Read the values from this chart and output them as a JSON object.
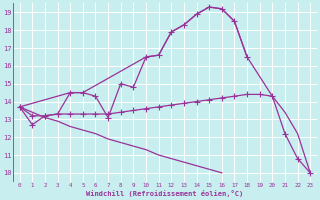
{
  "background_color": "#c8eef0",
  "grid_color": "#b8dde0",
  "line_color": "#993399",
  "xlabel": "Windchill (Refroidissement éolien,°C)",
  "xlim": [
    -0.5,
    23.5
  ],
  "ylim": [
    9.5,
    19.5
  ],
  "yticks": [
    10,
    11,
    12,
    13,
    14,
    15,
    16,
    17,
    18,
    19
  ],
  "xticks": [
    0,
    1,
    2,
    3,
    4,
    5,
    6,
    7,
    8,
    9,
    10,
    11,
    12,
    13,
    14,
    15,
    16,
    17,
    18,
    19,
    20,
    21,
    22,
    23
  ],
  "line1": {
    "x": [
      0,
      1,
      2,
      3,
      4,
      5,
      6,
      7,
      8,
      9,
      10,
      11,
      12,
      13,
      14,
      15,
      16,
      17,
      18
    ],
    "y": [
      13.7,
      12.7,
      13.2,
      13.3,
      14.5,
      14.5,
      14.3,
      13.1,
      15.0,
      14.8,
      16.5,
      16.6,
      17.9,
      18.3,
      18.9,
      19.3,
      19.2,
      18.5,
      16.5
    ]
  },
  "line2": {
    "x": [
      0,
      4,
      5,
      10,
      11,
      12,
      13,
      14,
      15,
      16,
      17,
      18,
      20,
      21,
      22,
      23
    ],
    "y": [
      13.7,
      14.5,
      14.5,
      16.5,
      16.6,
      17.9,
      18.3,
      18.9,
      19.3,
      19.2,
      18.5,
      16.5,
      14.3,
      13.4,
      12.2,
      10.0
    ]
  },
  "line3": {
    "x": [
      0,
      1,
      2,
      3,
      4,
      5,
      6,
      7,
      8,
      9,
      10,
      11,
      12,
      13,
      14,
      15,
      16,
      17,
      18,
      19,
      20,
      21,
      22,
      23
    ],
    "y": [
      13.7,
      13.2,
      13.2,
      13.3,
      13.3,
      13.3,
      13.3,
      13.3,
      13.4,
      13.5,
      13.6,
      13.7,
      13.8,
      13.9,
      14.0,
      14.1,
      14.2,
      14.3,
      14.4,
      14.4,
      14.3,
      12.2,
      10.8,
      10.0
    ]
  },
  "line4": {
    "x": [
      0,
      1,
      2,
      3,
      4,
      5,
      6,
      7,
      8,
      9,
      10,
      11,
      12,
      13,
      14,
      15,
      16,
      17,
      18,
      19,
      20,
      21,
      22,
      23
    ],
    "y": [
      13.7,
      13.4,
      13.1,
      12.9,
      12.6,
      12.4,
      12.2,
      11.9,
      11.7,
      11.5,
      11.3,
      11.0,
      10.8,
      10.6,
      10.4,
      10.2,
      10.0,
      null,
      null,
      null,
      null,
      null,
      null,
      null
    ]
  }
}
